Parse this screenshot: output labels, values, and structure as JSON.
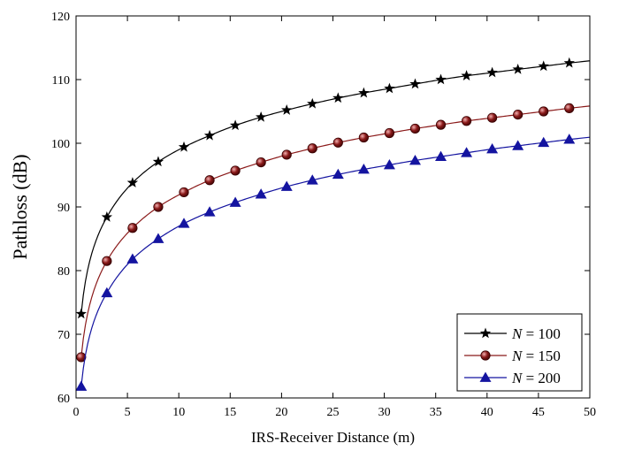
{
  "chart_data": {
    "type": "line",
    "xlabel": "IRS-Receiver Distance (m)",
    "ylabel": "Pathloss (dB)",
    "xlim": [
      0,
      50
    ],
    "ylim": [
      60,
      120
    ],
    "xticks": [
      0,
      5,
      10,
      15,
      20,
      25,
      30,
      35,
      40,
      45,
      50
    ],
    "yticks": [
      60,
      70,
      80,
      90,
      100,
      110,
      120
    ],
    "grid": false,
    "legend_position": "bottom-right",
    "series": [
      {
        "name": "N = 100",
        "legend_var": "N",
        "legend_rest": " = 100",
        "color": "#000000",
        "marker": "star",
        "x": [
          0.5,
          3,
          5.5,
          8,
          10.5,
          13,
          15.5,
          18,
          20.5,
          23,
          25.5,
          28,
          30.5,
          33,
          35.5,
          38,
          40.5,
          43,
          45.5,
          48
        ],
        "y": [
          73.2,
          88.4,
          93.8,
          97.1,
          99.4,
          101.2,
          102.8,
          104.1,
          105.2,
          106.2,
          107.1,
          107.9,
          108.6,
          109.3,
          110.0,
          110.6,
          111.1,
          111.6,
          112.1,
          112.6
        ]
      },
      {
        "name": "N = 150",
        "legend_var": "N",
        "legend_rest": " = 150",
        "color": "#8b1a1a",
        "marker": "circle",
        "x": [
          0.5,
          3,
          5.5,
          8,
          10.5,
          13,
          15.5,
          18,
          20.5,
          23,
          25.5,
          28,
          30.5,
          33,
          35.5,
          38,
          40.5,
          43,
          45.5,
          48
        ],
        "y": [
          66.4,
          81.5,
          86.7,
          90.0,
          92.3,
          94.2,
          95.7,
          97.0,
          98.2,
          99.2,
          100.1,
          100.9,
          101.6,
          102.3,
          102.9,
          103.5,
          104.0,
          104.5,
          105.0,
          105.5
        ]
      },
      {
        "name": "N = 200",
        "legend_var": "N",
        "legend_rest": " = 200",
        "color": "#1414a0",
        "marker": "triangle",
        "x": [
          0.5,
          3,
          5.5,
          8,
          10.5,
          13,
          15.5,
          18,
          20.5,
          23,
          25.5,
          28,
          30.5,
          33,
          35.5,
          38,
          40.5,
          43,
          45.5,
          48
        ],
        "y": [
          61.8,
          76.5,
          81.8,
          85.0,
          87.4,
          89.2,
          90.7,
          92.0,
          93.2,
          94.2,
          95.1,
          95.9,
          96.6,
          97.3,
          97.9,
          98.5,
          99.1,
          99.6,
          100.1,
          100.6
        ]
      }
    ]
  }
}
